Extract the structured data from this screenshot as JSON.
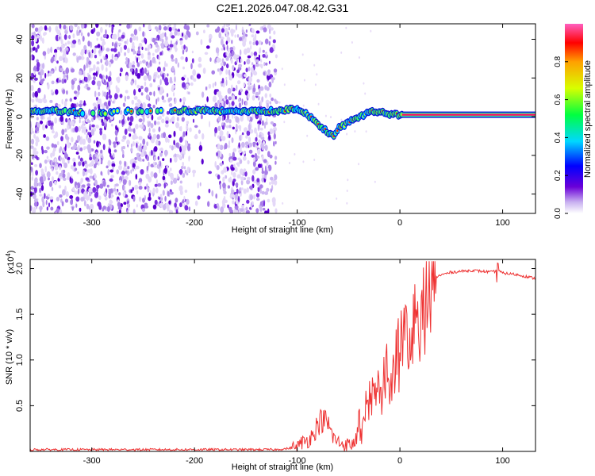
{
  "title": "C2E1.2026.047.08.42.G31",
  "chart_data": [
    {
      "type": "heatmap",
      "xlabel": "Height of straight line (km)",
      "ylabel": "Frequency (Hz)",
      "xlim": [
        -360,
        132
      ],
      "ylim": [
        -50,
        48
      ],
      "xticks": [
        -300,
        -200,
        -100,
        0,
        100
      ],
      "yticks": [
        40,
        20,
        0,
        -20,
        -40
      ],
      "xtick_labels": [
        "-300",
        "-200",
        "-100",
        "0",
        "100"
      ],
      "ytick_labels": [
        "40",
        "20",
        "0",
        "-20",
        "-40"
      ],
      "noise_region_km": [
        -360,
        -120
      ],
      "signal_trace": {
        "x": [
          -360,
          -330,
          -300,
          -250,
          -210,
          -180,
          -150,
          -120,
          -100,
          -90,
          -80,
          -70,
          -65,
          -60,
          -50,
          -40,
          -30,
          -20,
          -10,
          0,
          50,
          100,
          132
        ],
        "y": [
          3,
          3,
          2,
          3,
          3,
          3,
          3,
          3,
          4,
          1,
          -4,
          -8,
          -10,
          -6,
          -3,
          0,
          2,
          3,
          1,
          1,
          1,
          1,
          1
        ]
      },
      "colorbar": {
        "label": "Normalized spectral amplitude",
        "range": [
          0,
          1
        ],
        "ticks": [
          0.0,
          0.2,
          0.4,
          0.6,
          0.8
        ],
        "tick_labels": [
          "0.0",
          "0.2",
          "0.4",
          "0.6",
          "0.8"
        ],
        "colors": [
          "#ffffff",
          "#c8b0f0",
          "#6a00d8",
          "#0000ff",
          "#00d8ff",
          "#00ff40",
          "#d8ff00",
          "#ffa000",
          "#ff0000",
          "#ff60c0"
        ]
      }
    },
    {
      "type": "line",
      "xlabel": "Height of straight line (km)",
      "ylabel": "SNR (10 * v/v)",
      "scale_label_base": "(x10",
      "scale_label_exp": "4",
      "scale_label_close": ")",
      "xlim": [
        -360,
        132
      ],
      "ylim": [
        0,
        2.1
      ],
      "xticks": [
        -300,
        -200,
        -100,
        0,
        100
      ],
      "yticks": [
        0.5,
        1.0,
        1.5,
        2.0
      ],
      "xtick_labels": [
        "-300",
        "-200",
        "-100",
        "0",
        "100"
      ],
      "ytick_labels": [
        "0.5",
        "1.0",
        "1.5",
        "2.0"
      ],
      "color": "#ee3333",
      "series": [
        {
          "name": "SNR",
          "x": [
            -360,
            -300,
            -250,
            -200,
            -150,
            -120,
            -110,
            -100,
            -95,
            -90,
            -85,
            -80,
            -75,
            -70,
            -65,
            -60,
            -55,
            -50,
            -45,
            -40,
            -35,
            -30,
            -25,
            -20,
            -15,
            -10,
            -5,
            0,
            5,
            10,
            15,
            20,
            25,
            30,
            40,
            50,
            60,
            70,
            80,
            90,
            95,
            100,
            110,
            120,
            132
          ],
          "y": [
            0.02,
            0.02,
            0.02,
            0.02,
            0.02,
            0.02,
            0.03,
            0.05,
            0.1,
            0.12,
            0.18,
            0.3,
            0.35,
            0.3,
            0.15,
            0.1,
            0.08,
            0.07,
            0.08,
            0.3,
            0.55,
            0.65,
            0.85,
            0.8,
            1.0,
            0.95,
            1.1,
            1.25,
            1.35,
            1.45,
            1.55,
            1.7,
            1.8,
            1.88,
            1.93,
            1.96,
            1.97,
            1.98,
            1.97,
            1.96,
            1.98,
            1.95,
            1.94,
            1.92,
            1.89
          ]
        }
      ]
    }
  ]
}
